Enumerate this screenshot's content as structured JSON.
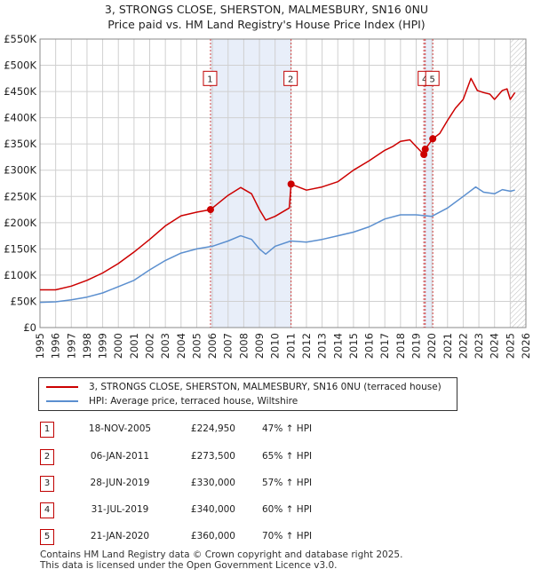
{
  "title_line1": "3, STRONGS CLOSE, SHERSTON, MALMESBURY, SN16 0NU",
  "title_line2": "Price paid vs. HM Land Registry's House Price Index (HPI)",
  "colors": {
    "property": "#cc0000",
    "hpi": "#5b8fcf",
    "shade": "#e8eef9",
    "vline": "#d04040",
    "grid": "#d0d0d0"
  },
  "chart_data": {
    "type": "line",
    "xlim": [
      1995,
      2026
    ],
    "ylim": [
      0,
      550000
    ],
    "yticks": [
      0,
      50000,
      100000,
      150000,
      200000,
      250000,
      300000,
      350000,
      400000,
      450000,
      500000,
      550000
    ],
    "ytick_labels": [
      "£0",
      "£50K",
      "£100K",
      "£150K",
      "£200K",
      "£250K",
      "£300K",
      "£350K",
      "£400K",
      "£450K",
      "£500K",
      "£550K"
    ],
    "xticks": [
      1995,
      1996,
      1997,
      1998,
      1999,
      2000,
      2001,
      2002,
      2003,
      2004,
      2005,
      2006,
      2007,
      2008,
      2009,
      2010,
      2011,
      2012,
      2013,
      2014,
      2015,
      2016,
      2017,
      2018,
      2019,
      2020,
      2021,
      2022,
      2023,
      2024,
      2025,
      2026
    ],
    "shaded_ranges": [
      [
        2005.88,
        2011.02
      ],
      [
        2019.49,
        2020.06
      ]
    ],
    "hatch_from": 2025.0,
    "series": [
      {
        "name": "3, STRONGS CLOSE, SHERSTON, MALMESBURY, SN16 0NU (terraced house)",
        "x": [
          1995.0,
          1996.0,
          1997.0,
          1998.0,
          1999.0,
          2000.0,
          2001.0,
          2002.0,
          2003.0,
          2004.0,
          2005.0,
          2005.88,
          2006.5,
          2007.0,
          2007.8,
          2008.5,
          2009.0,
          2009.4,
          2010.0,
          2010.9,
          2011.02,
          2012.0,
          2013.0,
          2014.0,
          2015.0,
          2016.0,
          2017.0,
          2017.5,
          2018.0,
          2018.6,
          2019.0,
          2019.49,
          2019.58,
          2020.06,
          2020.5,
          2021.0,
          2021.5,
          2022.0,
          2022.5,
          2022.9,
          2023.3,
          2023.7,
          2024.0,
          2024.5,
          2024.8,
          2025.0,
          2025.3
        ],
        "values": [
          72000,
          72000,
          79000,
          90000,
          104000,
          122000,
          144000,
          168000,
          194000,
          213000,
          220000,
          224950,
          240000,
          252000,
          267000,
          255000,
          225000,
          205000,
          212000,
          228000,
          273500,
          262000,
          268000,
          278000,
          300000,
          318000,
          338000,
          345000,
          355000,
          358000,
          345000,
          330000,
          340000,
          360000,
          370000,
          395000,
          418000,
          435000,
          475000,
          452000,
          448000,
          445000,
          435000,
          452000,
          455000,
          435000,
          448000
        ]
      },
      {
        "name": "HPI: Average price, terraced house, Wiltshire",
        "x": [
          1995.0,
          1996.0,
          1997.0,
          1998.0,
          1999.0,
          2000.0,
          2001.0,
          2002.0,
          2003.0,
          2004.0,
          2005.0,
          2006.0,
          2007.0,
          2007.8,
          2008.5,
          2009.0,
          2009.4,
          2010.0,
          2011.0,
          2012.0,
          2013.0,
          2014.0,
          2015.0,
          2016.0,
          2017.0,
          2018.0,
          2019.0,
          2020.0,
          2021.0,
          2022.0,
          2022.8,
          2023.3,
          2024.0,
          2024.5,
          2025.0,
          2025.3
        ],
        "values": [
          48000,
          49000,
          53000,
          58000,
          66000,
          78000,
          90000,
          110000,
          128000,
          142000,
          150000,
          155000,
          165000,
          175000,
          168000,
          150000,
          140000,
          155000,
          165000,
          163000,
          168000,
          175000,
          182000,
          192000,
          207000,
          215000,
          215000,
          212000,
          228000,
          250000,
          268000,
          258000,
          255000,
          263000,
          260000,
          262000
        ]
      }
    ],
    "sales": [
      {
        "id": "1",
        "x": 2005.88,
        "value": 224950
      },
      {
        "id": "2",
        "x": 2011.02,
        "value": 273500
      },
      {
        "id": "3",
        "x": 2019.49,
        "value": 330000
      },
      {
        "id": "4",
        "x": 2019.58,
        "value": 340000
      },
      {
        "id": "5",
        "x": 2020.06,
        "value": 360000
      }
    ],
    "marker_labels": [
      {
        "id": "1",
        "x": 2005.88,
        "y": 475000
      },
      {
        "id": "2",
        "x": 2011.02,
        "y": 475000
      },
      {
        "id": "4",
        "x": 2019.58,
        "y": 475000
      },
      {
        "id": "5",
        "x": 2020.06,
        "y": 475000
      }
    ]
  },
  "legend": {
    "property_label": "3, STRONGS CLOSE, SHERSTON, MALMESBURY, SN16 0NU (terraced house)",
    "hpi_label": "HPI: Average price, terraced house, Wiltshire"
  },
  "transactions": [
    {
      "num": "1",
      "date": "18-NOV-2005",
      "price": "£224,950",
      "hpi": "47% ↑ HPI"
    },
    {
      "num": "2",
      "date": "06-JAN-2011",
      "price": "£273,500",
      "hpi": "65% ↑ HPI"
    },
    {
      "num": "3",
      "date": "28-JUN-2019",
      "price": "£330,000",
      "hpi": "57% ↑ HPI"
    },
    {
      "num": "4",
      "date": "31-JUL-2019",
      "price": "£340,000",
      "hpi": "60% ↑ HPI"
    },
    {
      "num": "5",
      "date": "21-JAN-2020",
      "price": "£360,000",
      "hpi": "70% ↑ HPI"
    }
  ],
  "footer_line1": "Contains HM Land Registry data © Crown copyright and database right 2025.",
  "footer_line2": "This data is licensed under the Open Government Licence v3.0."
}
